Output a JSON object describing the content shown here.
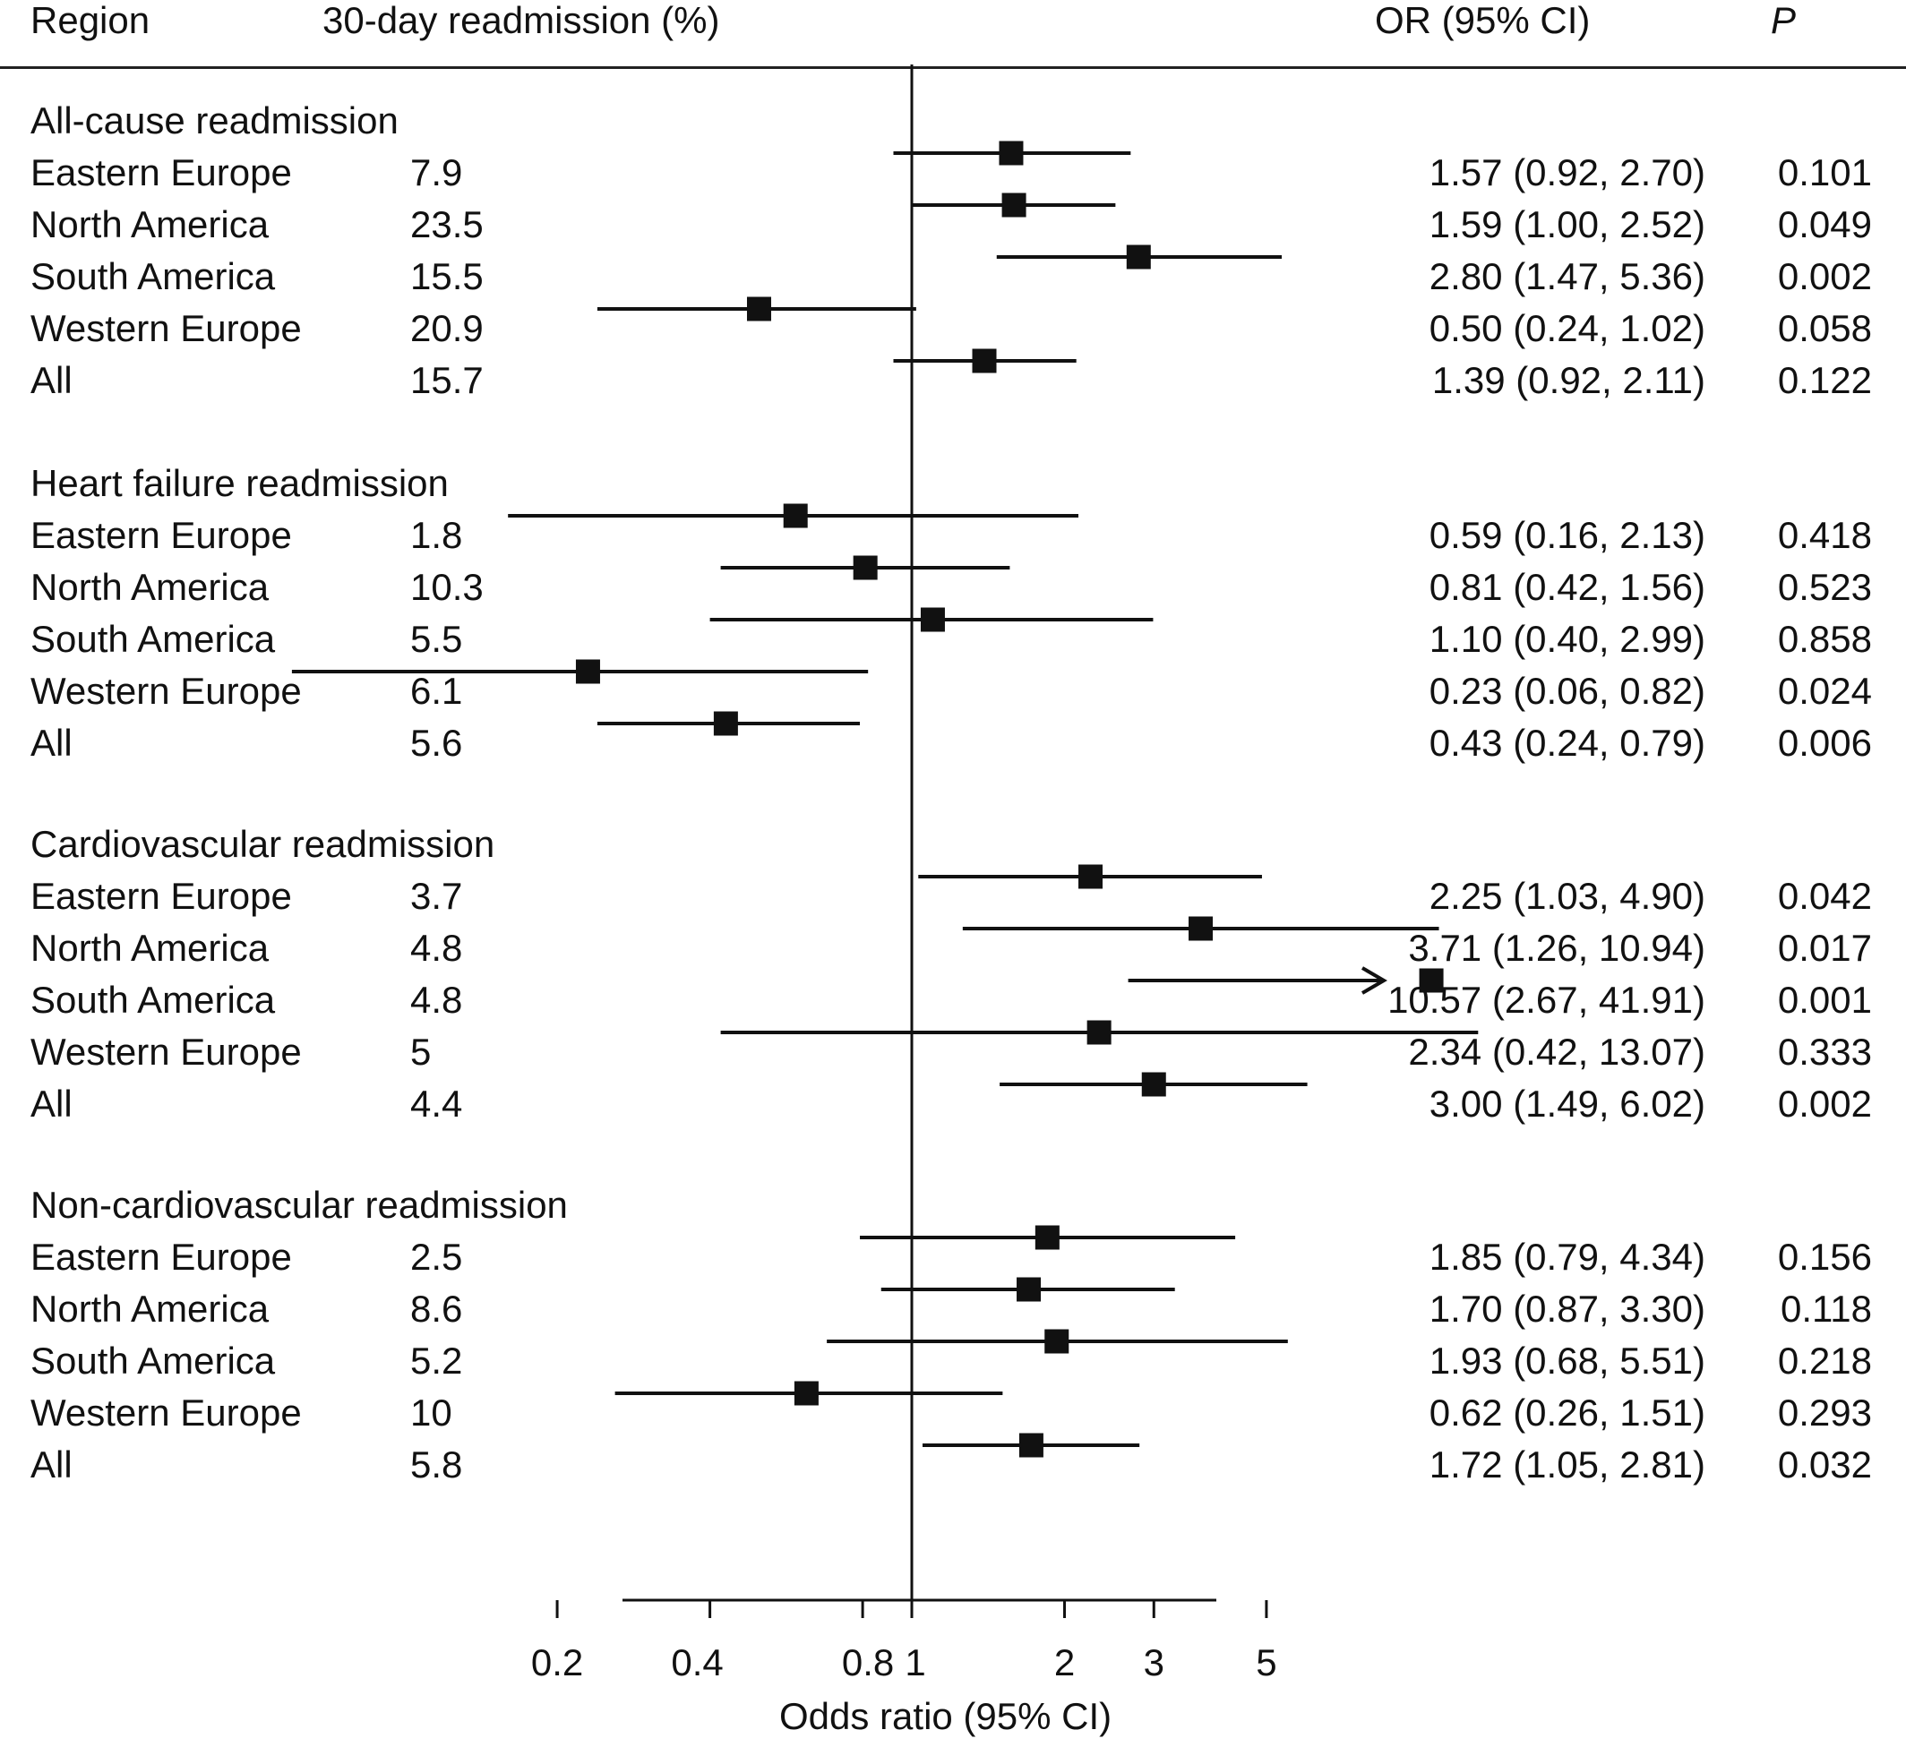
{
  "header": {
    "region": "Region",
    "readmission": "30-day readmission (%)",
    "or": "OR (95% CI)",
    "p": "P"
  },
  "chart_data": {
    "type": "forest",
    "x_scale": "log",
    "xlabel": "Odds ratio (95% CI)",
    "xticks": [
      0.2,
      0.4,
      0.8,
      1,
      2,
      3,
      5
    ],
    "xtick_labels": [
      "0.2",
      "0.4",
      "0.8",
      "1",
      "2",
      "3",
      "5"
    ],
    "reference_line": 1,
    "groups": [
      {
        "title": "All-cause readmission",
        "rows": [
          {
            "region": "Eastern Europe",
            "pct": "7.9",
            "or": 1.57,
            "lo": 0.92,
            "hi": 2.7,
            "or_text": "1.57 (0.92, 2.70)",
            "p": "0.101"
          },
          {
            "region": "North America",
            "pct": "23.5",
            "or": 1.59,
            "lo": 1.0,
            "hi": 2.52,
            "or_text": "1.59 (1.00, 2.52)",
            "p": "0.049"
          },
          {
            "region": "South America",
            "pct": "15.5",
            "or": 2.8,
            "lo": 1.47,
            "hi": 5.36,
            "or_text": "2.80 (1.47, 5.36)",
            "p": "0.002"
          },
          {
            "region": "Western Europe",
            "pct": "20.9",
            "or": 0.5,
            "lo": 0.24,
            "hi": 1.02,
            "or_text": "0.50 (0.24, 1.02)",
            "p": "0.058"
          },
          {
            "region": "All",
            "pct": "15.7",
            "or": 1.39,
            "lo": 0.92,
            "hi": 2.11,
            "or_text": "1.39 (0.92, 2.11)",
            "p": "0.122"
          }
        ]
      },
      {
        "title": "Heart failure readmission",
        "rows": [
          {
            "region": "Eastern Europe",
            "pct": "1.8",
            "or": 0.59,
            "lo": 0.16,
            "hi": 2.13,
            "or_text": "0.59 (0.16, 2.13)",
            "p": "0.418"
          },
          {
            "region": "North America",
            "pct": "10.3",
            "or": 0.81,
            "lo": 0.42,
            "hi": 1.56,
            "or_text": "0.81 (0.42, 1.56)",
            "p": "0.523"
          },
          {
            "region": "South America",
            "pct": "5.5",
            "or": 1.1,
            "lo": 0.4,
            "hi": 2.99,
            "or_text": "1.10 (0.40, 2.99)",
            "p": "0.858"
          },
          {
            "region": "Western Europe",
            "pct": "6.1",
            "or": 0.23,
            "lo": 0.06,
            "hi": 0.82,
            "or_text": "0.23 (0.06, 0.82)",
            "p": "0.024"
          },
          {
            "region": "All",
            "pct": "5.6",
            "or": 0.43,
            "lo": 0.24,
            "hi": 0.79,
            "or_text": "0.43 (0.24, 0.79)",
            "p": "0.006"
          }
        ]
      },
      {
        "title": "Cardiovascular readmission",
        "rows": [
          {
            "region": "Eastern Europe",
            "pct": "3.7",
            "or": 2.25,
            "lo": 1.03,
            "hi": 4.9,
            "or_text": "2.25 (1.03, 4.90)",
            "p": "0.042"
          },
          {
            "region": "North America",
            "pct": "4.8",
            "or": 3.71,
            "lo": 1.26,
            "hi": 10.94,
            "or_text": "3.71 (1.26, 10.94)",
            "p": "0.017"
          },
          {
            "region": "South America",
            "pct": "4.8",
            "or": 10.57,
            "lo": 2.67,
            "hi": 41.91,
            "or_text": "10.57 (2.67, 41.91)",
            "p": "0.001",
            "truncated_arrow": true
          },
          {
            "region": "Western Europe",
            "pct": "5",
            "or": 2.34,
            "lo": 0.42,
            "hi": 13.07,
            "or_text": "2.34 (0.42, 13.07)",
            "p": "0.333"
          },
          {
            "region": "All",
            "pct": "4.4",
            "or": 3.0,
            "lo": 1.49,
            "hi": 6.02,
            "or_text": "3.00 (1.49, 6.02)",
            "p": "0.002"
          }
        ]
      },
      {
        "title": "Non-cardiovascular readmission",
        "rows": [
          {
            "region": "Eastern Europe",
            "pct": "2.5",
            "or": 1.85,
            "lo": 0.79,
            "hi": 4.34,
            "or_text": "1.85 (0.79, 4.34)",
            "p": "0.156"
          },
          {
            "region": "North America",
            "pct": "8.6",
            "or": 1.7,
            "lo": 0.87,
            "hi": 3.3,
            "or_text": "1.70 (0.87, 3.30)",
            "p": "0.118"
          },
          {
            "region": "South America",
            "pct": "5.2",
            "or": 1.93,
            "lo": 0.68,
            "hi": 5.51,
            "or_text": "1.93 (0.68, 5.51)",
            "p": "0.218"
          },
          {
            "region": "Western Europe",
            "pct": "10",
            "or": 0.62,
            "lo": 0.26,
            "hi": 1.51,
            "or_text": "0.62 (0.26, 1.51)",
            "p": "0.293"
          },
          {
            "region": "All",
            "pct": "5.8",
            "or": 1.72,
            "lo": 1.05,
            "hi": 2.81,
            "or_text": "1.72 (1.05, 2.81)",
            "p": "0.032"
          }
        ]
      }
    ]
  }
}
